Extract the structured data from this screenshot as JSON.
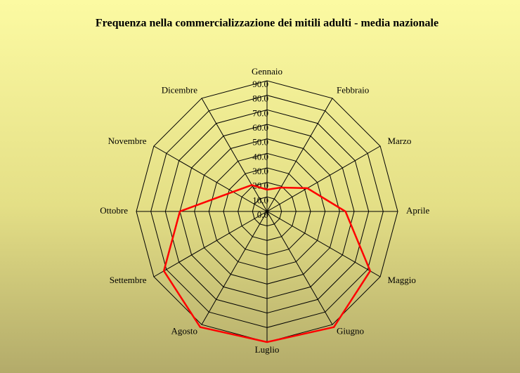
{
  "chart_data": {
    "type": "radar",
    "title": "Frequenza nella commercializzazione dei mitili adulti - media nazionale",
    "categories": [
      "Gennaio",
      "Febbraio",
      "Marzo",
      "Aprile",
      "Maggio",
      "Giugno",
      "Luglio",
      "Agosto",
      "Settembre",
      "Ottobre",
      "Novembre",
      "Dicembre"
    ],
    "series": [
      {
        "name": "media nazionale",
        "color": "#ff0000",
        "values": [
          15,
          19,
          32,
          54,
          82,
          92,
          90,
          92,
          82,
          60,
          27,
          21
        ]
      }
    ],
    "ylim": [
      0,
      90
    ],
    "yticks": [
      {
        "value": 0,
        "label": "0.0"
      },
      {
        "value": 10,
        "label": "10.0"
      },
      {
        "value": 20,
        "label": "20.0"
      },
      {
        "value": 30,
        "label": "30.0"
      },
      {
        "value": 40,
        "label": "40.0"
      },
      {
        "value": 50,
        "label": "50.0"
      },
      {
        "value": 60,
        "label": "60.0"
      },
      {
        "value": 70,
        "label": "70.0"
      },
      {
        "value": 80,
        "label": "80.0"
      },
      {
        "value": 90,
        "label": "90.0"
      }
    ],
    "grid": true
  }
}
